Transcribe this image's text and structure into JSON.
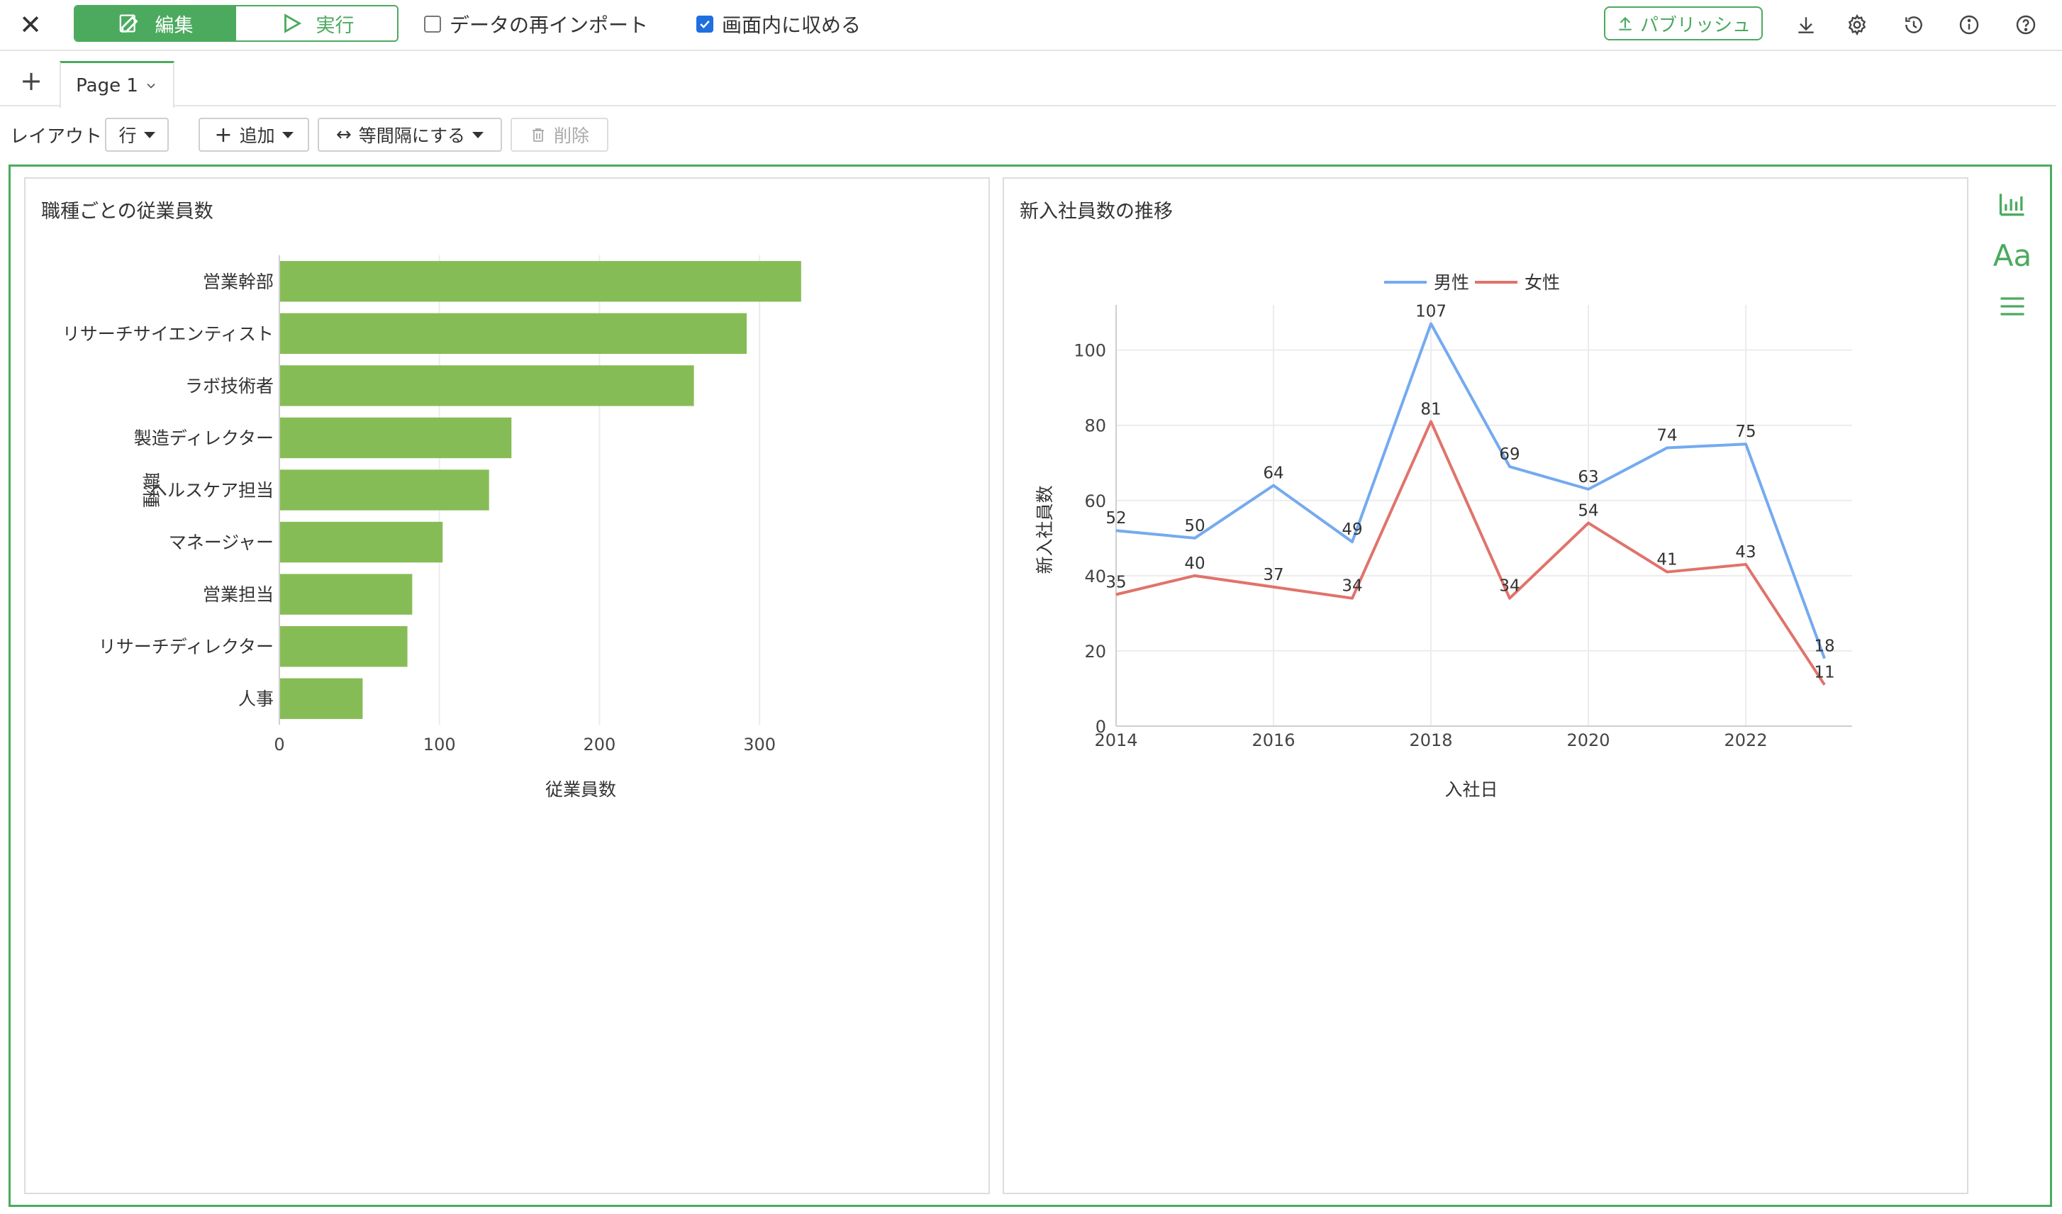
{
  "topbar": {
    "edit_label": "編集",
    "run_label": "実行",
    "reimport_label": "データの再インポート",
    "reimport_checked": false,
    "fit_label": "画面内に収める",
    "fit_checked": true,
    "publish_label": "パブリッシュ",
    "icons": [
      "close-icon",
      "edit-icon",
      "play-icon",
      "upload-icon",
      "download-icon",
      "gear-icon",
      "history-icon",
      "info-icon",
      "help-icon"
    ]
  },
  "tabs": {
    "add_label": "+",
    "page_label": "Page 1"
  },
  "toolbar": {
    "layout_label": "レイアウト",
    "layout_value": "行",
    "add_label": "追加",
    "distribute_label": "等間隔にする",
    "delete_label": "削除"
  },
  "colors": {
    "accent": "#4caa5e",
    "bar": "#86bc55",
    "male": "#74aaf0",
    "female": "#e0736b"
  },
  "sidebar": {
    "icons": [
      "bar-chart-icon",
      "text-icon",
      "menu-icon"
    ],
    "text_label": "Aa"
  },
  "chart_data": [
    {
      "type": "bar",
      "orientation": "horizontal",
      "title": "職種ごとの従業員数",
      "xlabel": "従業員数",
      "ylabel": "職種",
      "categories": [
        "営業幹部",
        "リサーチサイエンティスト",
        "ラボ技術者",
        "製造ディレクター",
        "ヘルスケア担当",
        "マネージャー",
        "営業担当",
        "リサーチディレクター",
        "人事"
      ],
      "values": [
        326,
        292,
        259,
        145,
        131,
        102,
        83,
        80,
        52
      ],
      "xlim": [
        0,
        350
      ],
      "xticks": [
        0,
        100,
        200,
        300
      ],
      "grid": true
    },
    {
      "type": "line",
      "title": "新入社員数の推移",
      "xlabel": "入社日",
      "ylabel": "新入社員数",
      "x": [
        2014,
        2015,
        2016,
        2017,
        2018,
        2019,
        2020,
        2021,
        2022,
        2023
      ],
      "xticks": [
        2014,
        2016,
        2018,
        2020,
        2022
      ],
      "ylim": [
        0,
        112
      ],
      "yticks": [
        0,
        20,
        40,
        60,
        80,
        100
      ],
      "legend": "top-center",
      "grid": true,
      "series": [
        {
          "name": "男性",
          "values": [
            52,
            50,
            64,
            49,
            107,
            69,
            63,
            74,
            75,
            18
          ]
        },
        {
          "name": "女性",
          "values": [
            35,
            40,
            37,
            34,
            81,
            34,
            54,
            41,
            43,
            11
          ]
        }
      ]
    }
  ]
}
